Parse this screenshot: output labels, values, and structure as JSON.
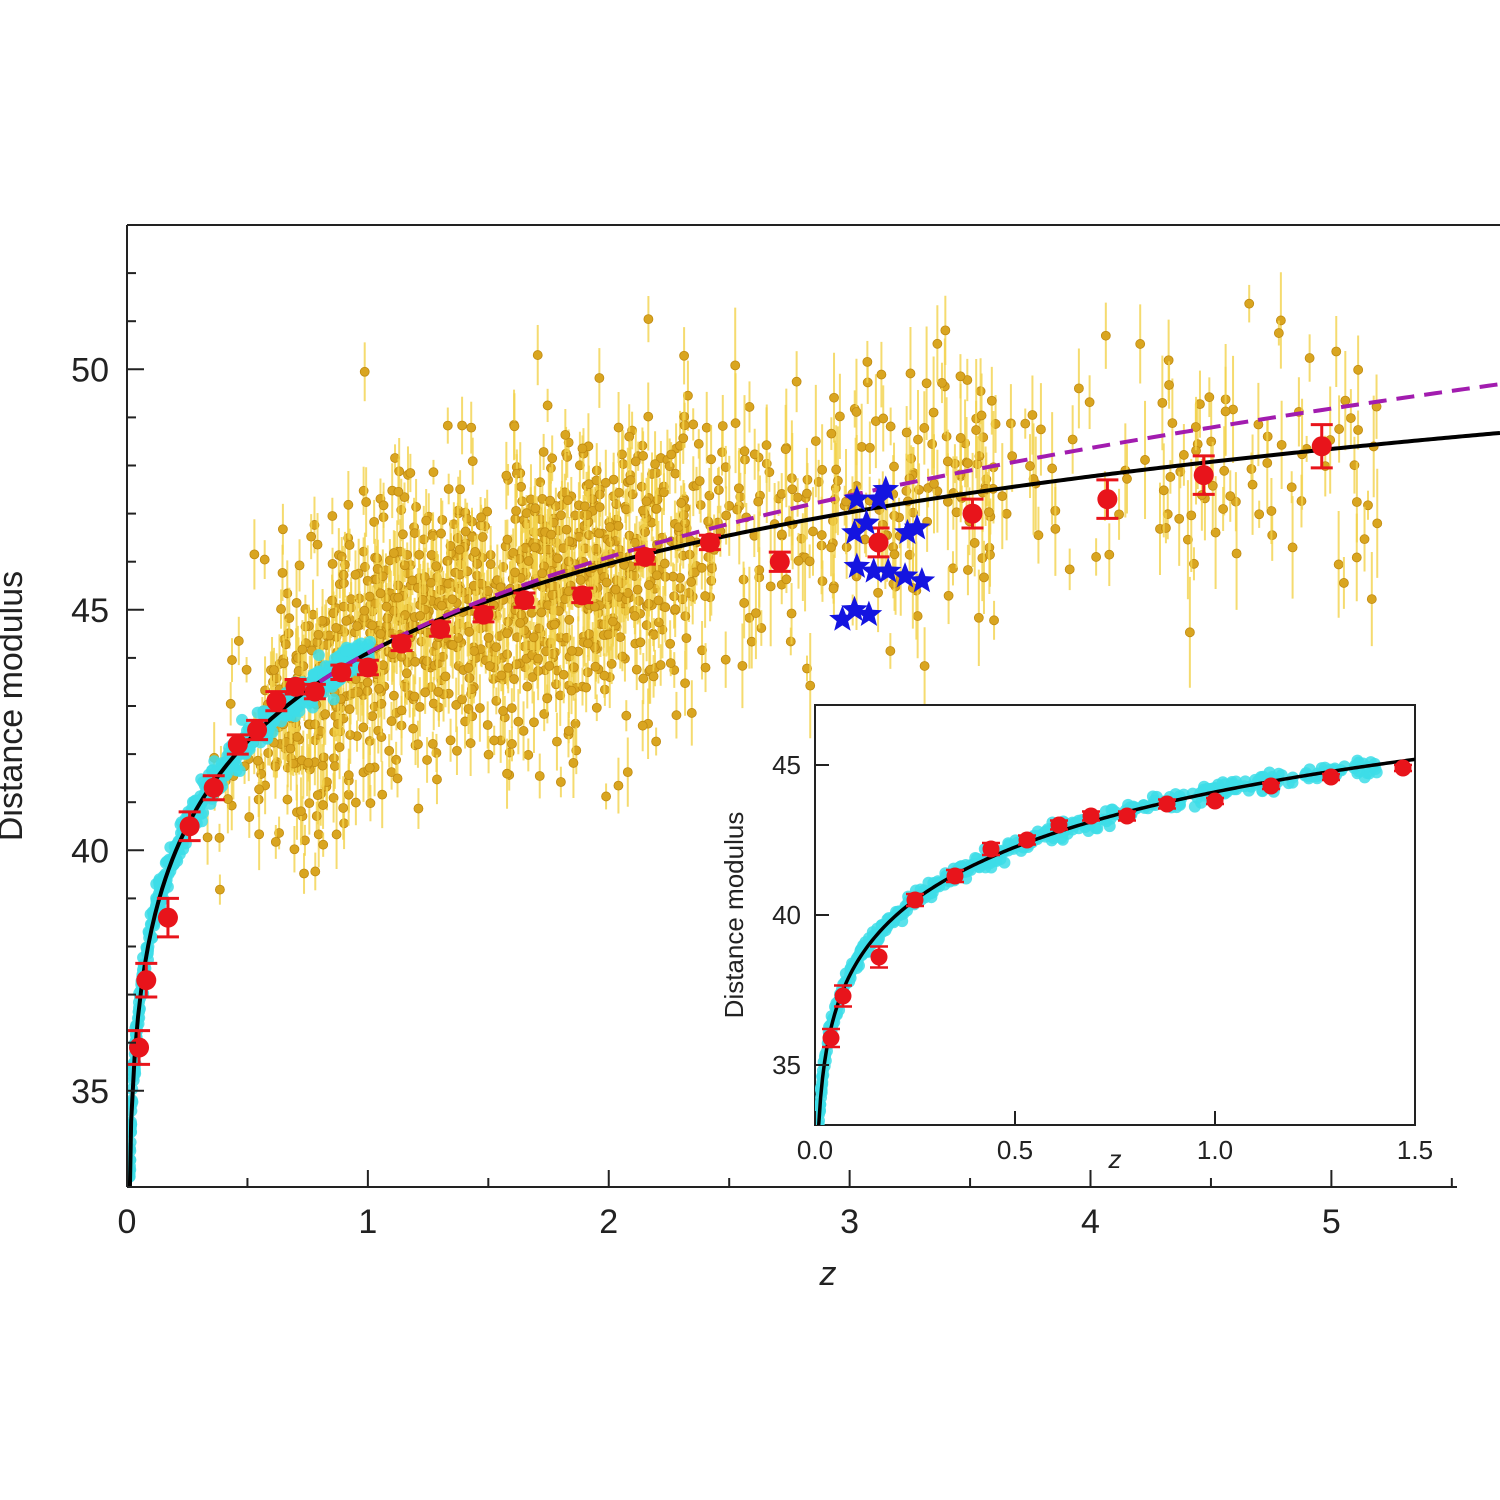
{
  "chart_data": [
    {
      "id": "main",
      "type": "scatter",
      "xlabel": "z",
      "ylabel": "Distance modulus",
      "xlim": [
        0,
        5.7
      ],
      "ylim": [
        33,
        53
      ],
      "xticks": [
        0,
        1,
        2,
        3,
        4,
        5
      ],
      "yticks": [
        35,
        40,
        45,
        50
      ],
      "grid": false,
      "colors": {
        "quasars": "#d9a520",
        "quasar_errorbar": "#f2d24b",
        "supernovae": "#3ddde8",
        "binned": "#e8141b",
        "grb": "#1414e0",
        "lcdm": "#000000",
        "fit": "#a21caf"
      },
      "series": [
        {
          "kind": "binned",
          "points": [
            {
              "x": 0.05,
              "y": 35.9,
              "err": 0.35
            },
            {
              "x": 0.08,
              "y": 37.3,
              "err": 0.35
            },
            {
              "x": 0.17,
              "y": 38.6,
              "err": 0.4
            },
            {
              "x": 0.26,
              "y": 40.5,
              "err": 0.3
            },
            {
              "x": 0.36,
              "y": 41.3,
              "err": 0.25
            },
            {
              "x": 0.46,
              "y": 42.2,
              "err": 0.2
            },
            {
              "x": 0.54,
              "y": 42.5,
              "err": 0.2
            },
            {
              "x": 0.62,
              "y": 43.1,
              "err": 0.2
            },
            {
              "x": 0.7,
              "y": 43.4,
              "err": 0.15
            },
            {
              "x": 0.78,
              "y": 43.3,
              "err": 0.15
            },
            {
              "x": 0.89,
              "y": 43.7,
              "err": 0.15
            },
            {
              "x": 1.0,
              "y": 43.8,
              "err": 0.15
            },
            {
              "x": 1.14,
              "y": 44.3,
              "err": 0.15
            },
            {
              "x": 1.3,
              "y": 44.6,
              "err": 0.15
            },
            {
              "x": 1.48,
              "y": 44.9,
              "err": 0.15
            },
            {
              "x": 1.65,
              "y": 45.2,
              "err": 0.15
            },
            {
              "x": 1.89,
              "y": 45.3,
              "err": 0.15
            },
            {
              "x": 2.15,
              "y": 46.1,
              "err": 0.15
            },
            {
              "x": 2.42,
              "y": 46.4,
              "err": 0.15
            },
            {
              "x": 2.71,
              "y": 46.0,
              "err": 0.2
            },
            {
              "x": 3.12,
              "y": 46.4,
              "err": 0.3
            },
            {
              "x": 3.51,
              "y": 47.0,
              "err": 0.3
            },
            {
              "x": 4.07,
              "y": 47.3,
              "err": 0.4
            },
            {
              "x": 4.47,
              "y": 47.8,
              "err": 0.4
            },
            {
              "x": 4.96,
              "y": 48.4,
              "err": 0.45
            }
          ]
        },
        {
          "kind": "grb",
          "points": [
            {
              "x": 2.97,
              "y": 44.8
            },
            {
              "x": 3.02,
              "y": 45.0
            },
            {
              "x": 3.08,
              "y": 44.9
            },
            {
              "x": 3.03,
              "y": 45.9
            },
            {
              "x": 3.1,
              "y": 45.8
            },
            {
              "x": 3.16,
              "y": 45.8
            },
            {
              "x": 3.23,
              "y": 45.7
            },
            {
              "x": 3.3,
              "y": 45.6
            },
            {
              "x": 3.02,
              "y": 46.6
            },
            {
              "x": 3.07,
              "y": 46.8
            },
            {
              "x": 3.24,
              "y": 46.6
            },
            {
              "x": 3.28,
              "y": 46.7
            },
            {
              "x": 3.12,
              "y": 47.3
            },
            {
              "x": 3.15,
              "y": 47.5
            },
            {
              "x": 3.03,
              "y": 47.3
            }
          ]
        }
      ],
      "quasar_cloud_note": "",
      "fit_extent": [
        0.8,
        5.7
      ]
    },
    {
      "id": "inset",
      "type": "scatter",
      "xlabel": "z",
      "ylabel": "Distance modulus",
      "xlim": [
        0,
        1.5
      ],
      "ylim": [
        33,
        47
      ],
      "xticks": [
        "0.0",
        "0.5",
        "1.0",
        "1.5"
      ],
      "yticks": [
        35,
        40,
        45
      ],
      "grid": false,
      "series": [
        {
          "kind": "binned",
          "points": [
            {
              "x": 0.04,
              "y": 35.9,
              "err": 0.3
            },
            {
              "x": 0.07,
              "y": 37.3,
              "err": 0.35
            },
            {
              "x": 0.16,
              "y": 38.6,
              "err": 0.35
            },
            {
              "x": 0.25,
              "y": 40.5,
              "err": 0.2
            },
            {
              "x": 0.35,
              "y": 41.3,
              "err": 0.2
            },
            {
              "x": 0.44,
              "y": 42.2,
              "err": 0.2
            },
            {
              "x": 0.53,
              "y": 42.5,
              "err": 0.15
            },
            {
              "x": 0.61,
              "y": 43.0,
              "err": 0.15
            },
            {
              "x": 0.69,
              "y": 43.3,
              "err": 0.15
            },
            {
              "x": 0.78,
              "y": 43.3,
              "err": 0.15
            },
            {
              "x": 0.88,
              "y": 43.7,
              "err": 0.15
            },
            {
              "x": 1.0,
              "y": 43.8,
              "err": 0.1
            },
            {
              "x": 1.14,
              "y": 44.3,
              "err": 0.1
            },
            {
              "x": 1.29,
              "y": 44.6,
              "err": 0.1
            },
            {
              "x": 1.47,
              "y": 44.9,
              "err": 0.1
            }
          ]
        }
      ]
    }
  ]
}
